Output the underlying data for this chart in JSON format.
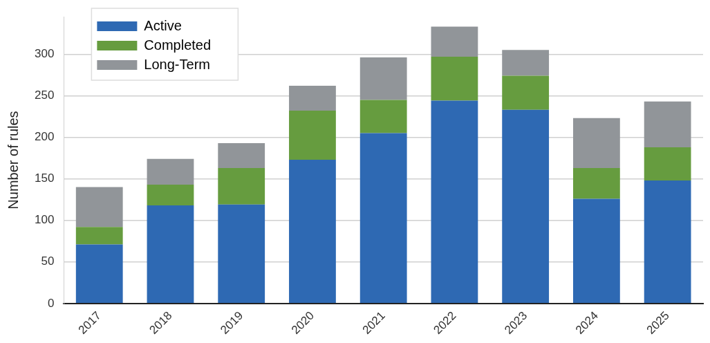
{
  "chart_data": {
    "type": "bar",
    "stacked": true,
    "ylabel": "Number of rules",
    "categories": [
      "2017",
      "2018",
      "2019",
      "2020",
      "2021",
      "2022",
      "2023",
      "2024",
      "2025"
    ],
    "series": [
      {
        "name": "Active",
        "color": "#2e69b3",
        "values": [
          71,
          118,
          119,
          173,
          205,
          244,
          233,
          126,
          148
        ]
      },
      {
        "name": "Completed",
        "color": "#669c3f",
        "values": [
          21,
          25,
          44,
          59,
          40,
          53,
          41,
          37,
          40
        ]
      },
      {
        "name": "Long-Term",
        "color": "#919599",
        "values": [
          48,
          31,
          30,
          30,
          51,
          36,
          31,
          60,
          55
        ]
      }
    ],
    "ylim": [
      0,
      345
    ],
    "yticks": [
      0,
      50,
      100,
      150,
      200,
      250,
      300
    ],
    "grid": "y",
    "legend": "top left"
  }
}
